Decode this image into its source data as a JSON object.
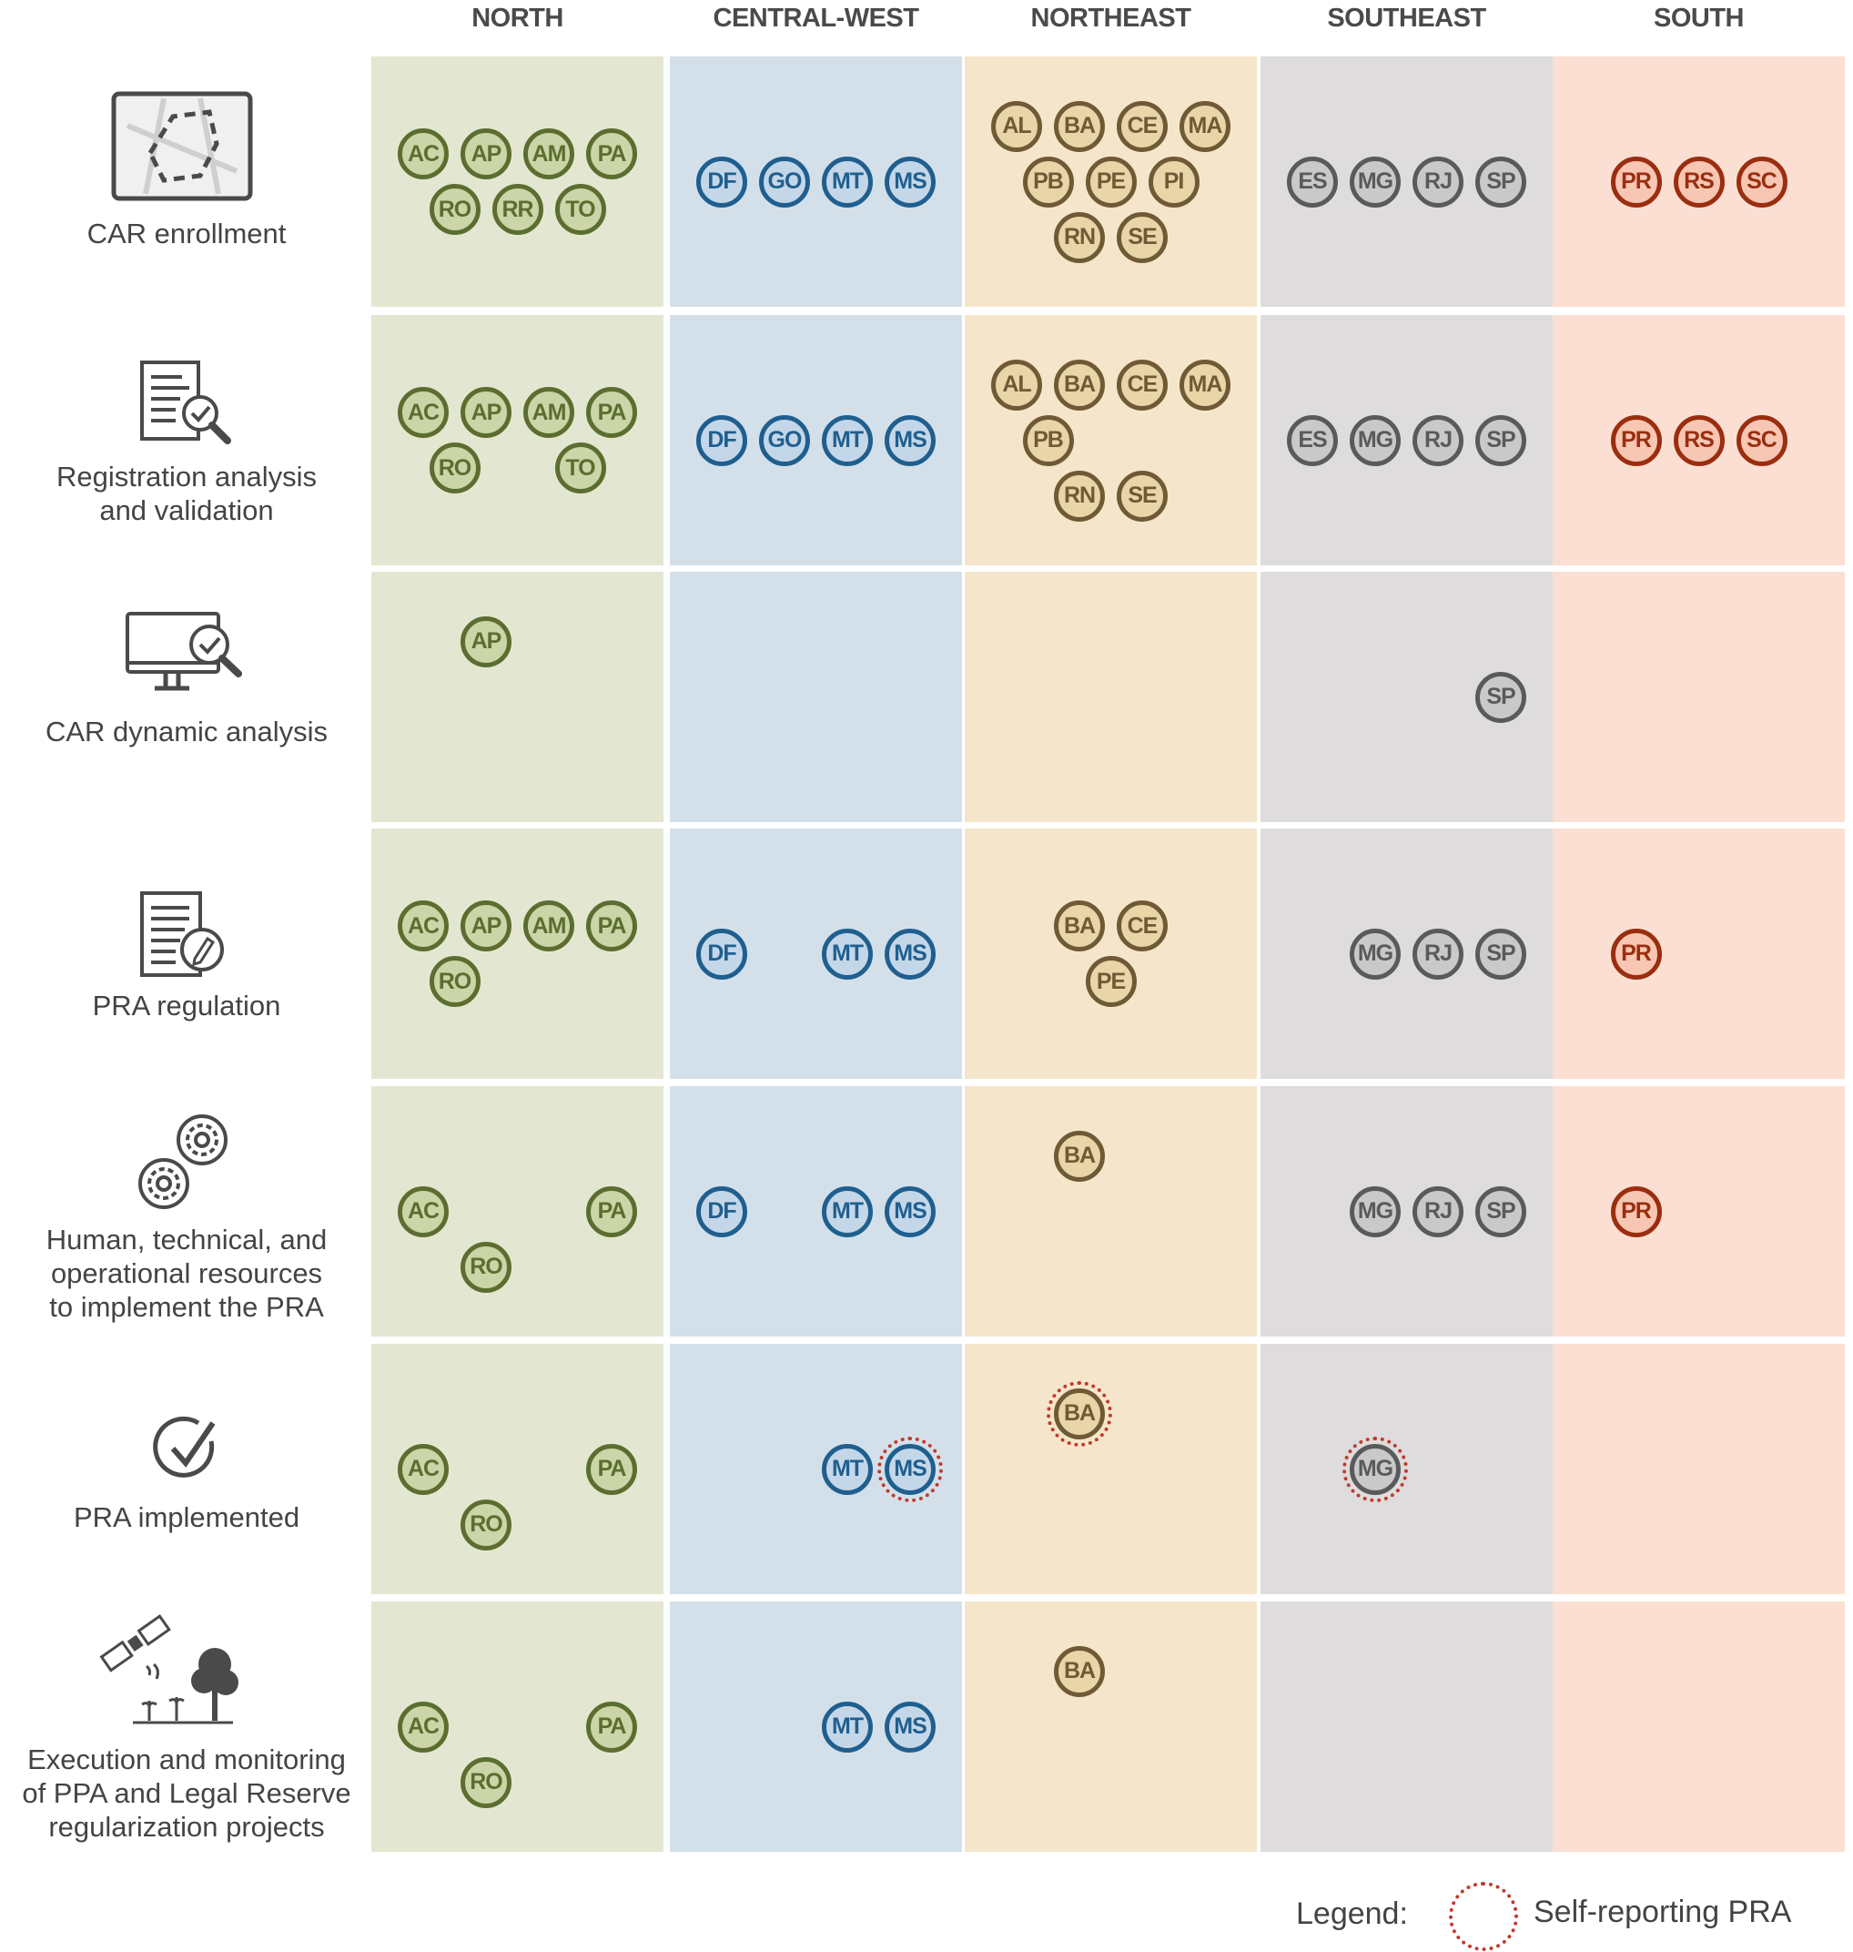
{
  "regions": [
    {
      "key": "north",
      "label": "NORTH",
      "fill": "#e3e7d1",
      "stroke": "#5b6e2f",
      "badge_fill": "#cbd5a8",
      "text": "#5b6e2f"
    },
    {
      "key": "central_west",
      "label": "CENTRAL-WEST",
      "fill": "#d3e0ea",
      "stroke": "#1f5f8f",
      "badge_fill": "#c4d7e8",
      "text": "#1f5f8f"
    },
    {
      "key": "northeast",
      "label": "NORTHEAST",
      "fill": "#f5e6cb",
      "stroke": "#6f5a35",
      "badge_fill": "#e8d5a8",
      "text": "#6f5a35"
    },
    {
      "key": "southeast",
      "label": "SOUTHEAST",
      "fill": "#dedcdc",
      "stroke": "#5a5a5a",
      "badge_fill": "#c9c9c9",
      "text": "#5a5a5a"
    },
    {
      "key": "south",
      "label": "SOUTH",
      "fill": "#fcdfd3",
      "stroke": "#9a2e0f",
      "badge_fill": "#f7c7b3",
      "text": "#9a2e0f"
    }
  ],
  "stages": [
    {
      "key": "car_enrollment",
      "label": [
        "CAR enrollment"
      ],
      "icon": "map-boundary-icon"
    },
    {
      "key": "registration_analysis",
      "label": [
        "Registration analysis",
        "and validation"
      ],
      "icon": "document-search-icon"
    },
    {
      "key": "dynamic_analysis",
      "label": [
        "CAR dynamic analysis"
      ],
      "icon": "monitor-search-icon"
    },
    {
      "key": "pra_regulation",
      "label": [
        "PRA regulation"
      ],
      "icon": "document-pen-icon"
    },
    {
      "key": "resources",
      "label": [
        "Human, technical, and",
        "operational resources",
        "to implement the PRA"
      ],
      "icon": "gears-icon"
    },
    {
      "key": "pra_implemented",
      "label": [
        "PRA implemented"
      ],
      "icon": "checkmark-icon"
    },
    {
      "key": "execution_monitoring",
      "label": [
        "Execution and monitoring",
        "of PPA and Legal Reserve",
        "regularization projects"
      ],
      "icon": "satellite-forest-icon"
    }
  ],
  "cells": [
    [
      [
        [
          "AC",
          "AP",
          "AM",
          "PA"
        ],
        [
          "RO",
          "RR",
          "TO"
        ]
      ],
      [
        [
          "DF",
          "GO",
          "MT",
          "MS"
        ]
      ],
      [
        [
          "AL",
          "BA",
          "CE",
          "MA"
        ],
        [
          "PB",
          "PE",
          "PI"
        ],
        [
          "RN",
          "SE"
        ]
      ],
      [
        [
          "ES",
          "MG",
          "RJ",
          "SP"
        ]
      ],
      [
        [
          "PR",
          "RS",
          "SC"
        ]
      ]
    ],
    [
      [
        [
          "AC",
          "AP",
          "AM",
          "PA"
        ],
        [
          "RO",
          "",
          "TO"
        ]
      ],
      [
        [
          "DF",
          "GO",
          "MT",
          "MS"
        ]
      ],
      [
        [
          "AL",
          "BA",
          "CE",
          "MA"
        ],
        [
          "PB",
          "",
          ""
        ],
        [
          "RN",
          "SE"
        ]
      ],
      [
        [
          "ES",
          "MG",
          "RJ",
          "SP"
        ]
      ],
      [
        [
          "PR",
          "RS",
          "SC"
        ]
      ]
    ],
    [
      [
        [
          "",
          "AP",
          "",
          ""
        ],
        [
          "",
          "",
          ""
        ],
        [
          "",
          "",
          ""
        ]
      ],
      [],
      [],
      [
        [
          "",
          "",
          "",
          "SP"
        ]
      ],
      []
    ],
    [
      [
        [
          "AC",
          "AP",
          "AM",
          "PA"
        ],
        [
          "RO",
          "",
          ""
        ]
      ],
      [
        [
          "DF",
          "",
          "MT",
          "MS"
        ]
      ],
      [
        [
          "",
          "BA",
          "CE",
          ""
        ],
        [
          "",
          "PE",
          ""
        ]
      ],
      [
        [
          "",
          "MG",
          "RJ",
          "SP"
        ]
      ],
      [
        [
          "PR",
          "",
          ""
        ]
      ]
    ],
    [
      [
        [
          "",
          "",
          "",
          ""
        ],
        [
          "AC",
          "",
          "",
          "PA"
        ],
        [
          "",
          "RO",
          "",
          ""
        ]
      ],
      [
        [
          "DF",
          "",
          "MT",
          "MS"
        ]
      ],
      [
        [
          "",
          "BA",
          "",
          ""
        ],
        [
          "",
          "",
          ""
        ],
        [
          "",
          "",
          ""
        ]
      ],
      [
        [
          "",
          "MG",
          "RJ",
          "SP"
        ]
      ],
      [
        [
          "PR",
          "",
          ""
        ]
      ]
    ],
    [
      [
        [
          "",
          "",
          "",
          ""
        ],
        [
          "AC",
          "",
          "",
          "PA"
        ],
        [
          "",
          "RO",
          "",
          ""
        ]
      ],
      [
        [
          "",
          "",
          "MT",
          "MS"
        ]
      ],
      [
        [
          "",
          "BA",
          "",
          ""
        ],
        [
          "",
          "",
          ""
        ],
        [
          "",
          "",
          ""
        ]
      ],
      [
        [
          "",
          "MG",
          "",
          ""
        ]
      ],
      []
    ],
    [
      [
        [
          "",
          "",
          "",
          ""
        ],
        [
          "AC",
          "",
          "",
          "PA"
        ],
        [
          "",
          "RO",
          "",
          ""
        ]
      ],
      [
        [
          "",
          "",
          "MT",
          "MS"
        ]
      ],
      [
        [
          "",
          "BA",
          "",
          ""
        ],
        [
          "",
          "",
          ""
        ],
        [
          "",
          "",
          ""
        ]
      ],
      [],
      []
    ]
  ],
  "self_reporting": [
    "pra_implemented.central_west.MS",
    "pra_implemented.northeast.BA",
    "pra_implemented.southeast.MG"
  ],
  "legend": {
    "title": "Legend:",
    "item": "Self-reporting PRA"
  }
}
